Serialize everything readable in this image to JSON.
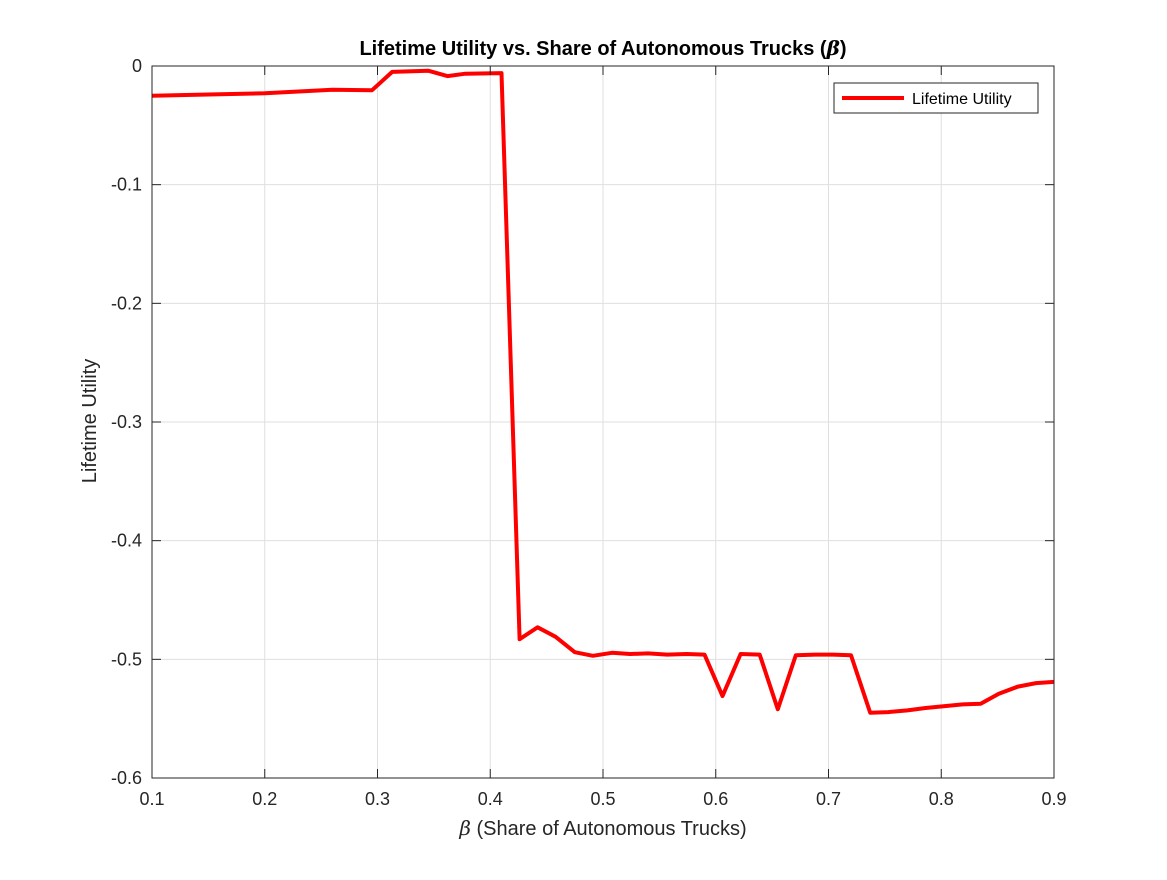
{
  "chart_data": {
    "type": "line",
    "title": {
      "prefix": "Lifetime Utility vs. Share of Autonomous Trucks (",
      "symbol": "β",
      "suffix": ")"
    },
    "xlabel": {
      "symbol": "β",
      "text": " (Share of Autonomous Trucks)"
    },
    "ylabel": "Lifetime Utility",
    "xlim": [
      0.1,
      0.9
    ],
    "ylim": [
      -0.6,
      0
    ],
    "xticks": [
      0.1,
      0.2,
      0.3,
      0.4,
      0.5,
      0.6,
      0.7,
      0.8,
      0.9
    ],
    "xtick_labels": [
      "0.1",
      "0.2",
      "0.3",
      "0.4",
      "0.5",
      "0.6",
      "0.7",
      "0.8",
      "0.9"
    ],
    "yticks": [
      -0.6,
      -0.5,
      -0.4,
      -0.3,
      -0.2,
      -0.1,
      0
    ],
    "ytick_labels": [
      "-0.6",
      "-0.5",
      "-0.4",
      "-0.3",
      "-0.2",
      "-0.1",
      "0"
    ],
    "grid": true,
    "legend_position": "top-right",
    "series": [
      {
        "name": "Lifetime Utility",
        "color": "#ff0000",
        "x": [
          0.1,
          0.15,
          0.2,
          0.26,
          0.295,
          0.313,
          0.345,
          0.362,
          0.378,
          0.41,
          0.426,
          0.442,
          0.458,
          0.475,
          0.491,
          0.508,
          0.524,
          0.54,
          0.557,
          0.574,
          0.59,
          0.606,
          0.622,
          0.639,
          0.655,
          0.671,
          0.688,
          0.704,
          0.72,
          0.737,
          0.753,
          0.77,
          0.786,
          0.802,
          0.819,
          0.835,
          0.851,
          0.868,
          0.884,
          0.9
        ],
        "y": [
          -0.025,
          -0.024,
          -0.023,
          -0.02,
          -0.0205,
          -0.005,
          -0.004,
          -0.0085,
          -0.0065,
          -0.006,
          -0.483,
          -0.473,
          -0.481,
          -0.494,
          -0.497,
          -0.4945,
          -0.4955,
          -0.495,
          -0.496,
          -0.4955,
          -0.496,
          -0.531,
          -0.4955,
          -0.496,
          -0.542,
          -0.4965,
          -0.496,
          -0.496,
          -0.4965,
          -0.545,
          -0.5445,
          -0.543,
          -0.541,
          -0.5395,
          -0.538,
          -0.5375,
          -0.529,
          -0.523,
          -0.52,
          -0.519
        ]
      }
    ]
  }
}
